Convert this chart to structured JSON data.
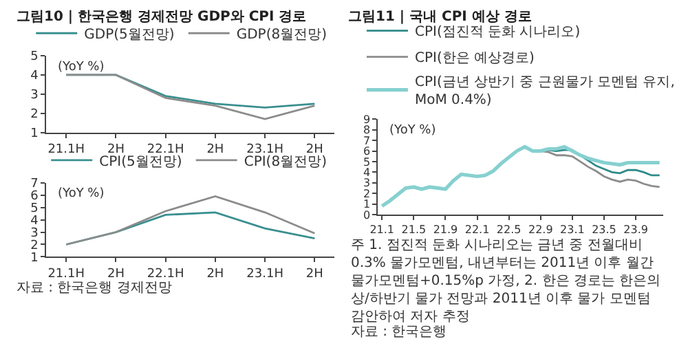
{
  "chart_data": [
    {
      "type": "line",
      "title": "그림10 | 한국은행 경제전망 GDP와 CPI 경로",
      "ylabel": "(YoY %)",
      "categories": [
        "21.1H",
        "2H",
        "22.1H",
        "2H",
        "23.1H",
        "2H"
      ],
      "ylim": [
        1,
        5
      ],
      "yticks": [
        1,
        2,
        3,
        4,
        5
      ],
      "legend": "top right",
      "marker": "none",
      "line_style": "solid",
      "series": [
        {
          "name": "GDP(5월전망)",
          "color": "#3a8f8f",
          "values": [
            4.0,
            4.0,
            2.9,
            2.5,
            2.3,
            2.5
          ]
        },
        {
          "name": "GDP(8월전망)",
          "color": "#8c8c8c",
          "values": [
            4.0,
            4.0,
            2.8,
            2.4,
            1.7,
            2.4
          ]
        }
      ]
    },
    {
      "type": "line",
      "ylabel": "(YoY %)",
      "categories": [
        "21.1H",
        "2H",
        "22.1H",
        "2H",
        "23.1H",
        "2H"
      ],
      "ylim": [
        1,
        7
      ],
      "yticks": [
        1,
        2,
        3,
        4,
        5,
        6,
        7
      ],
      "legend": "top right",
      "marker": "none",
      "line_style": "solid",
      "annotations": [
        "자료 : 한국은행 경제전망"
      ],
      "series": [
        {
          "name": "CPI(5월전망)",
          "color": "#3a8f8f",
          "values": [
            2.0,
            3.0,
            4.4,
            4.6,
            3.3,
            2.5
          ]
        },
        {
          "name": "CPI(8월전망)",
          "color": "#8c8c8c",
          "values": [
            2.0,
            3.0,
            4.7,
            5.9,
            4.6,
            2.9
          ]
        }
      ]
    },
    {
      "type": "line",
      "title": "그림11 | 국내 CPI 예상 경로",
      "ylabel": "(YoY %)",
      "categories": [
        "21.1",
        null,
        null,
        null,
        "21.5",
        null,
        null,
        null,
        "21.9",
        null,
        null,
        null,
        "22.1",
        null,
        null,
        null,
        "22.5",
        null,
        null,
        null,
        "22.9",
        null,
        null,
        null,
        "23.1",
        null,
        null,
        null,
        "23.5",
        null,
        null,
        null,
        "23.9",
        null,
        null,
        null
      ],
      "ylim": [
        0,
        9
      ],
      "yticks": [
        0,
        1,
        2,
        3,
        4,
        5,
        6,
        7,
        8,
        9
      ],
      "legend": "top",
      "marker": "none",
      "line_style": "solid",
      "annotations": [
        "주 1. 점진적 둔화 시나리오는 금년 중 전월대비 0.3% 물가모멘텀, 내년부터는 2011년 이후 월간 물가모멘텀+0.15%p 가정, 2. 한은 경로는 한은의 상/하반기 물가 전망과 2011년 이후 물가 모멘텀 감안하여 저자 추정",
        "자료 : 한국은행"
      ],
      "series": [
        {
          "name": "CPI(점진적 둔화 시나리오)",
          "color": "#2f8a8a",
          "values": [
            null,
            null,
            null,
            null,
            null,
            null,
            null,
            null,
            null,
            null,
            null,
            null,
            null,
            null,
            null,
            null,
            null,
            null,
            null,
            null,
            6.0,
            6.1,
            6.0,
            6.1,
            6.1,
            5.6,
            5.1,
            4.6,
            4.3,
            4.0,
            3.9,
            4.2,
            4.2,
            4.0,
            3.7,
            3.7
          ]
        },
        {
          "name": "CPI(한은 예상경로)",
          "color": "#8c8c8c",
          "values": [
            null,
            null,
            null,
            null,
            null,
            null,
            null,
            null,
            null,
            null,
            null,
            null,
            null,
            null,
            null,
            null,
            null,
            null,
            null,
            null,
            6.0,
            5.9,
            5.6,
            5.6,
            5.5,
            5.0,
            4.5,
            4.1,
            3.6,
            3.3,
            3.1,
            3.3,
            3.2,
            2.9,
            2.7,
            2.6
          ]
        },
        {
          "name": "CPI(금년 상반기 중 근원물가 모멘텀 유지, MoM 0.4%)",
          "color": "#86d0d0",
          "values": [
            0.8,
            1.3,
            1.9,
            2.5,
            2.6,
            2.4,
            2.6,
            2.5,
            2.4,
            3.2,
            3.8,
            3.7,
            3.6,
            3.7,
            4.1,
            4.8,
            5.4,
            6.0,
            6.4,
            6.0,
            6.0,
            6.2,
            6.2,
            6.4,
            6.0,
            5.6,
            5.3,
            5.1,
            4.9,
            4.8,
            4.7,
            4.9,
            4.9,
            4.9,
            4.9,
            4.9
          ]
        }
      ]
    }
  ]
}
